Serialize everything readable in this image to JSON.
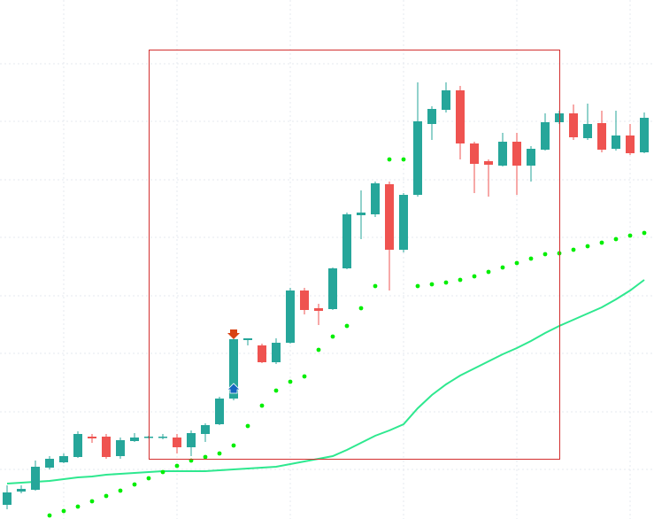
{
  "chart_data": {
    "type": "candlestick",
    "categories": [
      null,
      null,
      null,
      null,
      null,
      null,
      null,
      null,
      null,
      null,
      null,
      null,
      null,
      null,
      null,
      null,
      null,
      null,
      null,
      null,
      null,
      null,
      null,
      null,
      null,
      null,
      null,
      null,
      null,
      null,
      null,
      null,
      null,
      null,
      null,
      null,
      null,
      null,
      null,
      null,
      null,
      null,
      null,
      null,
      null,
      null
    ],
    "open": [
      16,
      31,
      33,
      58,
      64,
      70,
      93,
      93,
      71,
      88,
      92,
      92,
      92,
      81,
      96,
      107,
      136,
      202,
      196,
      177,
      199,
      258,
      238,
      237,
      283,
      343,
      344,
      378,
      304,
      366,
      446,
      462,
      484,
      424,
      404,
      399,
      426,
      399,
      417,
      448,
      458,
      430,
      447,
      418,
      433,
      414
    ],
    "high": [
      38,
      38,
      66,
      71,
      74,
      99,
      96,
      96,
      92,
      97,
      94,
      96,
      96,
      100,
      108,
      138,
      206,
      204,
      198,
      204,
      261,
      261,
      243,
      284,
      346,
      371,
      381,
      381,
      368,
      493,
      466,
      493,
      489,
      426,
      406,
      436,
      436,
      421,
      458,
      461,
      468,
      469,
      461,
      461,
      446,
      459
    ],
    "low": [
      11,
      29,
      32,
      56,
      63,
      69,
      86,
      68,
      68,
      87,
      91,
      90,
      74,
      71,
      87,
      106,
      134,
      196,
      176,
      175,
      198,
      231,
      219,
      236,
      282,
      316,
      341,
      258,
      301,
      364,
      428,
      459,
      406,
      368,
      364,
      398,
      366,
      381,
      416,
      446,
      428,
      428,
      414,
      416,
      411,
      413
    ],
    "close": [
      30,
      34,
      59,
      68,
      71,
      96,
      91,
      70,
      89,
      92,
      93,
      93,
      81,
      97,
      106,
      136,
      203,
      204,
      177,
      199,
      258,
      236,
      235,
      283,
      344,
      346,
      379,
      304,
      366,
      449,
      463,
      484,
      424,
      401,
      400,
      426,
      399,
      418,
      448,
      458,
      431,
      446,
      417,
      433,
      413,
      453
    ],
    "up_color": "#26a69a",
    "down_color": "#ef5350",
    "series": [
      {
        "style": "line",
        "color": "#2ee88f",
        "values": [
          40,
          41,
          42,
          43,
          45,
          47,
          48,
          50,
          51,
          52,
          53,
          54,
          54,
          54,
          54,
          55,
          56,
          57,
          58,
          59,
          62,
          65,
          68,
          71,
          78,
          86,
          94,
          100,
          107,
          125,
          140,
          152,
          162,
          170,
          178,
          186,
          193,
          201,
          210,
          218,
          225,
          232,
          239,
          248,
          258,
          270
        ]
      },
      {
        "style": "dots",
        "color": "#00ee00",
        "values": [
          null,
          null,
          null,
          4,
          9,
          14,
          20,
          26,
          32,
          39,
          46,
          53,
          60,
          66,
          70,
          74,
          83,
          105,
          128,
          145,
          155,
          161,
          191,
          206,
          218,
          238,
          263,
          406,
          406,
          263,
          265,
          267,
          270,
          274,
          279,
          284,
          289,
          294,
          299,
          300,
          304,
          308,
          312,
          316,
          320,
          323
        ]
      }
    ],
    "ylim": [
      0,
      586
    ]
  }
}
